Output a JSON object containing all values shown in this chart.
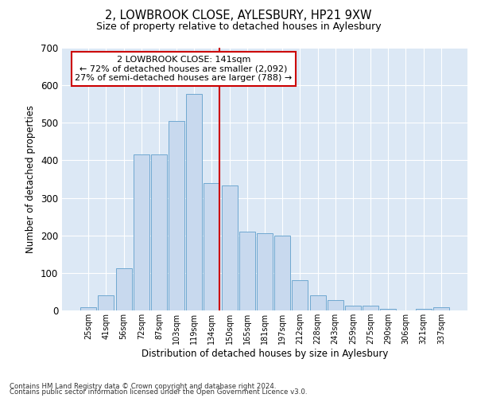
{
  "title": "2, LOWBROOK CLOSE, AYLESBURY, HP21 9XW",
  "subtitle": "Size of property relative to detached houses in Aylesbury",
  "xlabel": "Distribution of detached houses by size in Aylesbury",
  "ylabel": "Number of detached properties",
  "bar_color": "#c8d9ee",
  "bar_edge_color": "#6fa8d0",
  "background_color": "#dce8f5",
  "categories": [
    "25sqm",
    "41sqm",
    "56sqm",
    "72sqm",
    "87sqm",
    "103sqm",
    "119sqm",
    "134sqm",
    "150sqm",
    "165sqm",
    "181sqm",
    "197sqm",
    "212sqm",
    "228sqm",
    "243sqm",
    "259sqm",
    "275sqm",
    "290sqm",
    "306sqm",
    "321sqm",
    "337sqm"
  ],
  "values": [
    8,
    40,
    113,
    415,
    415,
    505,
    578,
    340,
    333,
    210,
    205,
    200,
    80,
    40,
    27,
    13,
    13,
    5,
    0,
    5,
    8
  ],
  "vline_x_index": 7.45,
  "vline_color": "#cc0000",
  "annotation_title": "2 LOWBROOK CLOSE: 141sqm",
  "annotation_line1": "← 72% of detached houses are smaller (2,092)",
  "annotation_line2": "27% of semi-detached houses are larger (788) →",
  "annotation_box_color": "#ffffff",
  "annotation_box_edge": "#cc0000",
  "ylim": [
    0,
    700
  ],
  "yticks": [
    0,
    100,
    200,
    300,
    400,
    500,
    600,
    700
  ],
  "footer1": "Contains HM Land Registry data © Crown copyright and database right 2024.",
  "footer2": "Contains public sector information licensed under the Open Government Licence v3.0."
}
